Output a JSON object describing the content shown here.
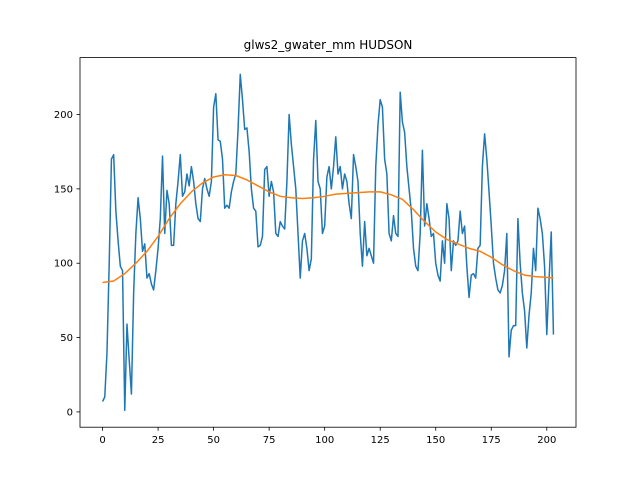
{
  "chart_data": {
    "type": "line",
    "title": "glws2_gwater_mm HUDSON",
    "xlim": [
      -10.15,
      213.15
    ],
    "ylim": [
      -10.3,
      238.3
    ],
    "xticks": [
      0,
      25,
      50,
      75,
      100,
      125,
      150,
      175,
      200
    ],
    "yticks": [
      0,
      50,
      100,
      150,
      200
    ],
    "series": [
      {
        "color": "#1f77b4",
        "x": [
          0,
          1,
          2,
          3,
          4,
          5,
          6,
          7,
          8,
          9,
          10,
          11,
          12,
          13,
          14,
          15,
          16,
          17,
          18,
          19,
          20,
          21,
          22,
          23,
          24,
          25,
          26,
          27,
          28,
          29,
          30,
          31,
          32,
          33,
          34,
          35,
          36,
          37,
          38,
          39,
          40,
          41,
          42,
          43,
          44,
          45,
          46,
          47,
          48,
          49,
          50,
          51,
          52,
          53,
          54,
          55,
          56,
          57,
          58,
          59,
          60,
          61,
          62,
          63,
          64,
          65,
          66,
          67,
          68,
          69,
          70,
          71,
          72,
          73,
          74,
          75,
          76,
          77,
          78,
          79,
          80,
          81,
          82,
          83,
          84,
          85,
          86,
          87,
          88,
          89,
          90,
          91,
          92,
          93,
          94,
          95,
          96,
          97,
          98,
          99,
          100,
          101,
          102,
          103,
          104,
          105,
          106,
          107,
          108,
          109,
          110,
          111,
          112,
          113,
          114,
          115,
          116,
          117,
          118,
          119,
          120,
          121,
          122,
          123,
          124,
          125,
          126,
          127,
          128,
          129,
          130,
          131,
          132,
          133,
          134,
          135,
          136,
          137,
          138,
          139,
          140,
          141,
          142,
          143,
          144,
          145,
          146,
          147,
          148,
          149,
          150,
          151,
          152,
          153,
          154,
          155,
          156,
          157,
          158,
          159,
          160,
          161,
          162,
          163,
          164,
          165,
          166,
          167,
          168,
          169,
          170,
          171,
          172,
          173,
          174,
          175,
          176,
          177,
          178,
          179,
          180,
          181,
          182,
          183,
          184,
          185,
          186,
          187,
          188,
          189,
          190,
          191,
          192,
          193,
          194,
          195,
          196,
          197,
          198,
          199,
          200,
          201,
          202,
          203
        ],
        "values": [
          7,
          10,
          40,
          100,
          170,
          173,
          135,
          115,
          98,
          95,
          1,
          59,
          35,
          12,
          80,
          120,
          144,
          130,
          108,
          113,
          90,
          93,
          86,
          82,
          95,
          110,
          130,
          172,
          120,
          149,
          140,
          112,
          112,
          140,
          155,
          173,
          145,
          148,
          160,
          152,
          165,
          155,
          140,
          130,
          128,
          150,
          157,
          150,
          145,
          155,
          205,
          214,
          183,
          182,
          170,
          137,
          139,
          137,
          148,
          155,
          160,
          190,
          227,
          210,
          190,
          191,
          175,
          150,
          137,
          135,
          111,
          112,
          118,
          163,
          165,
          145,
          155,
          148,
          120,
          118,
          128,
          125,
          123,
          155,
          200,
          180,
          165,
          150,
          120,
          90,
          115,
          120,
          110,
          95,
          103,
          170,
          196,
          155,
          150,
          120,
          125,
          158,
          165,
          150,
          165,
          185,
          160,
          165,
          150,
          160,
          155,
          140,
          130,
          173,
          165,
          155,
          120,
          98,
          128,
          105,
          110,
          105,
          100,
          165,
          193,
          210,
          205,
          170,
          160,
          120,
          115,
          132,
          120,
          118,
          215,
          195,
          188,
          165,
          150,
          135,
          110,
          98,
          95,
          120,
          176,
          125,
          140,
          130,
          118,
          120,
          100,
          92,
          88,
          115,
          100,
          140,
          130,
          95,
          115,
          112,
          115,
          135,
          120,
          125,
          98,
          77,
          92,
          93,
          90,
          110,
          112,
          165,
          187,
          170,
          148,
          125,
          100,
          90,
          82,
          80,
          85,
          95,
          120,
          37,
          55,
          58,
          58,
          130,
          100,
          80,
          68,
          43,
          65,
          80,
          110,
          95,
          137,
          130,
          120,
          98,
          52,
          88,
          121,
          52
        ]
      },
      {
        "color": "#ff7f0e",
        "x": [
          0,
          5,
          10,
          15,
          20,
          25,
          30,
          35,
          40,
          45,
          50,
          55,
          60,
          65,
          70,
          75,
          80,
          85,
          90,
          95,
          100,
          105,
          110,
          115,
          120,
          125,
          130,
          135,
          140,
          145,
          150,
          155,
          160,
          165,
          170,
          175,
          180,
          185,
          190,
          195,
          200,
          203
        ],
        "values": [
          87,
          88,
          93,
          100,
          108,
          118,
          130,
          140,
          148,
          154,
          158,
          159.5,
          159,
          156,
          152,
          148,
          145,
          144,
          143.5,
          144,
          145,
          146.5,
          147,
          147.5,
          148,
          148,
          146,
          143,
          136,
          128,
          121,
          116,
          113,
          110,
          108,
          104,
          99,
          95,
          92,
          91,
          90.5,
          90
        ]
      }
    ]
  }
}
